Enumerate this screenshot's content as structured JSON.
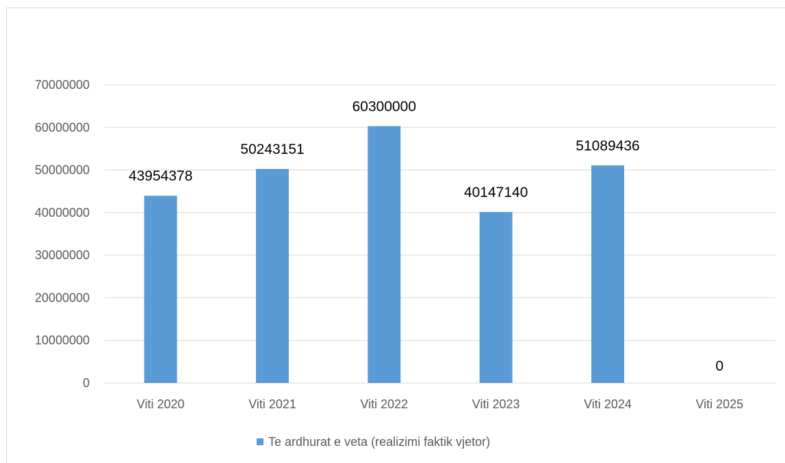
{
  "chart_data": {
    "type": "bar",
    "categories": [
      "Viti 2020",
      "Viti 2021",
      "Viti 2022",
      "Viti 2023",
      "Viti 2024",
      "Viti 2025"
    ],
    "series": [
      {
        "name": "Te ardhurat e veta (realizimi faktik vjetor)",
        "values": [
          43954378,
          50243151,
          60300000,
          40147140,
          51089436,
          0
        ],
        "labels": [
          "43954378",
          "50243151",
          "60300000",
          "40147140",
          "51089436",
          "0"
        ],
        "color": "#5b9bd5"
      }
    ],
    "ylim": [
      0,
      70000000
    ],
    "yticks": [
      "0",
      "10000000",
      "20000000",
      "30000000",
      "40000000",
      "50000000",
      "60000000",
      "70000000"
    ],
    "grid": true,
    "legend_position": "bottom",
    "gridline_color": "#d9d9d9"
  }
}
